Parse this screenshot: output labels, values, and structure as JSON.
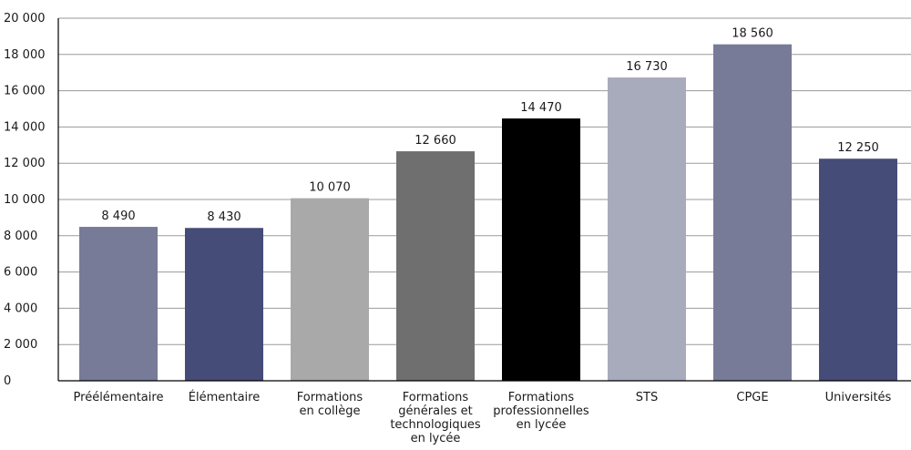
{
  "chart_data": {
    "type": "bar",
    "title": "",
    "xlabel": "",
    "ylabel": "",
    "ylim": [
      0,
      20000
    ],
    "yticks": [
      0,
      2000,
      4000,
      6000,
      8000,
      10000,
      12000,
      14000,
      16000,
      18000,
      20000
    ],
    "ytick_labels": [
      "0",
      "2 000",
      "4 000",
      "6 000",
      "8 000",
      "10 000",
      "12 000",
      "14 000",
      "16 000",
      "18 000",
      "20 000"
    ],
    "grid": true,
    "legend": "none",
    "categories": [
      [
        "Préélémentaire"
      ],
      [
        "Élémentaire"
      ],
      [
        "Formations",
        "en collège"
      ],
      [
        "Formations",
        "générales et",
        "technologiques",
        "en lycée"
      ],
      [
        "Formations",
        "professionnelles",
        "en lycée"
      ],
      [
        "STS"
      ],
      [
        "CPGE"
      ],
      [
        "Universités"
      ]
    ],
    "values": [
      8490,
      8430,
      10070,
      12660,
      14470,
      16730,
      18560,
      12250
    ],
    "value_labels": [
      "8 490",
      "8 430",
      "10 070",
      "12 660",
      "14 470",
      "16 730",
      "18 560",
      "12 250"
    ],
    "colors": [
      "#777b98",
      "#464c78",
      "#a9a9a9",
      "#6f6f6f",
      "#000000",
      "#a8abbc",
      "#777b98",
      "#464c78"
    ]
  }
}
